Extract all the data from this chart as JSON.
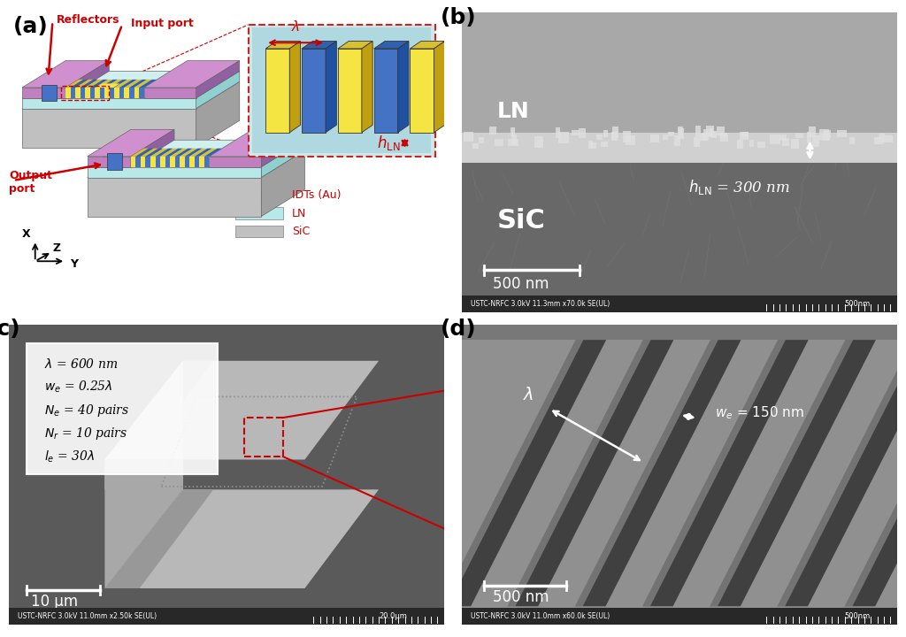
{
  "panel_labels": [
    "(a)",
    "(b)",
    "(c)",
    "(d)"
  ],
  "panel_label_color": "#000000",
  "panel_label_fontsize": 18,
  "panel_label_fontweight": "bold",
  "background_color": "#ffffff",
  "panel_a": {
    "reflectors_text": "Reflectors",
    "input_port_text": "Input port",
    "output_port_text": "Output\nport",
    "h_ln_text": "$h_{\\mathrm{LN}}$",
    "lambda_text": "$\\lambda$",
    "legend_items": [
      {
        "label": "IDTs (Au)"
      },
      {
        "label": "LN"
      },
      {
        "label": "SiC"
      }
    ],
    "label_color": "#cc0000",
    "body_light_blue": "#b8e8e8",
    "body_purple": "#c080c0",
    "body_gray_sic": "#c0c0c0",
    "idt_yellow": "#f5e542",
    "idt_blue": "#4472c4"
  },
  "panel_b": {
    "ln_text": "LN",
    "sic_text": "SiC",
    "h_ln_text": "$h_{\\mathrm{LN}}$ = 300 nm",
    "scale_bar_text": "500 nm",
    "footer_text": "USTC-NRFC 3.0kV 11.3mm x70.0k SE(UL)",
    "footer_right": "500nm",
    "bg_upper_color": "#a0a0a0",
    "bg_lower_color": "#686868",
    "ln_layer_color": "#c8c8c8"
  },
  "panel_c": {
    "param_box_text": [
      "$\\lambda$ = 600 nm",
      "$w_e$ = 0.25$\\lambda$",
      "$N_e$ = 40 pairs",
      "$N_r$ = 10 pairs",
      "$l_e$ = 30$\\lambda$"
    ],
    "scale_bar_text": "10 μm",
    "footer_text": "USTC-NRFC 3.0kV 11.0mm x2.50k SE(UL)",
    "footer_right": "20.0μm"
  },
  "panel_d": {
    "lambda_text": "$\\lambda$",
    "we_text": "$w_e$ = 150 nm",
    "scale_bar_text": "500 nm",
    "footer_text": "USTC-NRFC 3.0kV 11.0mm x60.0k SE(UL)",
    "footer_right": "500nm"
  }
}
